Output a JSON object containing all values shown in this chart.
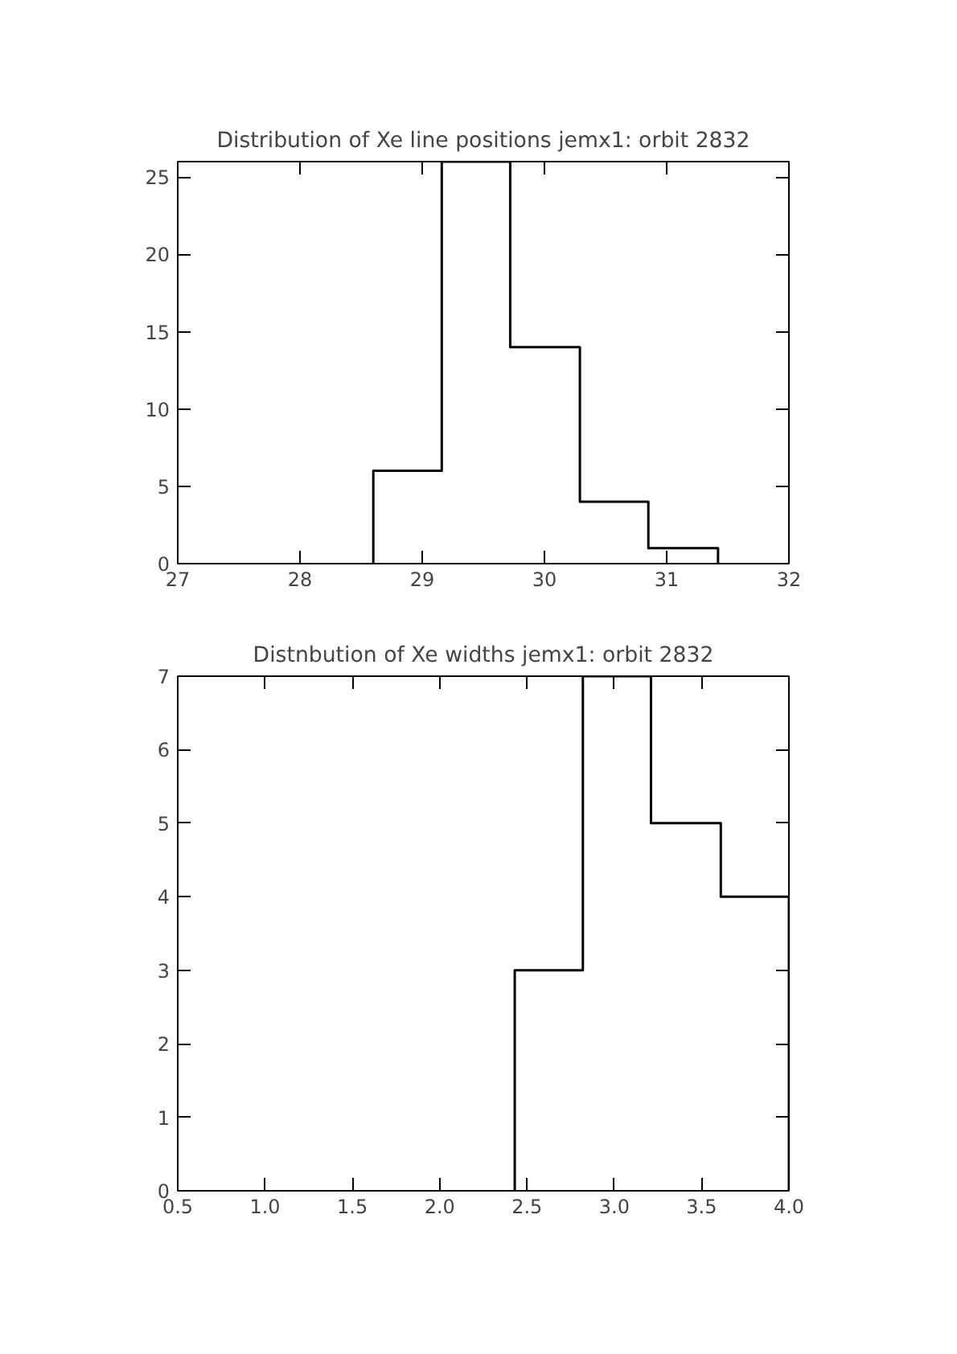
{
  "chart_data": [
    {
      "type": "histogram",
      "title": "Distribution of Xe line positions jemx1: orbit 2832",
      "bins": [
        28.6,
        29.16,
        29.72,
        30.29,
        30.85,
        31.42
      ],
      "values": [
        6,
        26,
        14,
        4,
        1
      ],
      "color": "#000000",
      "xlim": [
        27,
        32
      ],
      "xticks": [
        27,
        28,
        29,
        30,
        31,
        32
      ],
      "ylim": [
        0,
        26
      ],
      "yticks": [
        0,
        5,
        10,
        15,
        20,
        25
      ],
      "grid": false
    },
    {
      "type": "histogram",
      "title": "Distnbution of Xe widths jemx1: orbit 2832",
      "bins": [
        2.43,
        2.82,
        3.21,
        3.61,
        4.0
      ],
      "values": [
        3,
        7,
        5,
        4
      ],
      "color": "#000000",
      "xlim": [
        0.5,
        4.0
      ],
      "xticks": [
        {
          "value": 0.5,
          "label": "0.5"
        },
        {
          "value": 1.0,
          "label": "1.0"
        },
        {
          "value": 1.5,
          "label": "1.5"
        },
        {
          "value": 2.0,
          "label": "2.0"
        },
        {
          "value": 2.5,
          "label": "2.5"
        },
        {
          "value": 3.0,
          "label": "3.0"
        },
        {
          "value": 3.5,
          "label": "3.5"
        },
        {
          "value": 4.0,
          "label": "4.0"
        }
      ],
      "ylim": [
        0,
        7
      ],
      "yticks": [
        0,
        1,
        2,
        3,
        4,
        5,
        6,
        7
      ],
      "grid": false
    }
  ]
}
